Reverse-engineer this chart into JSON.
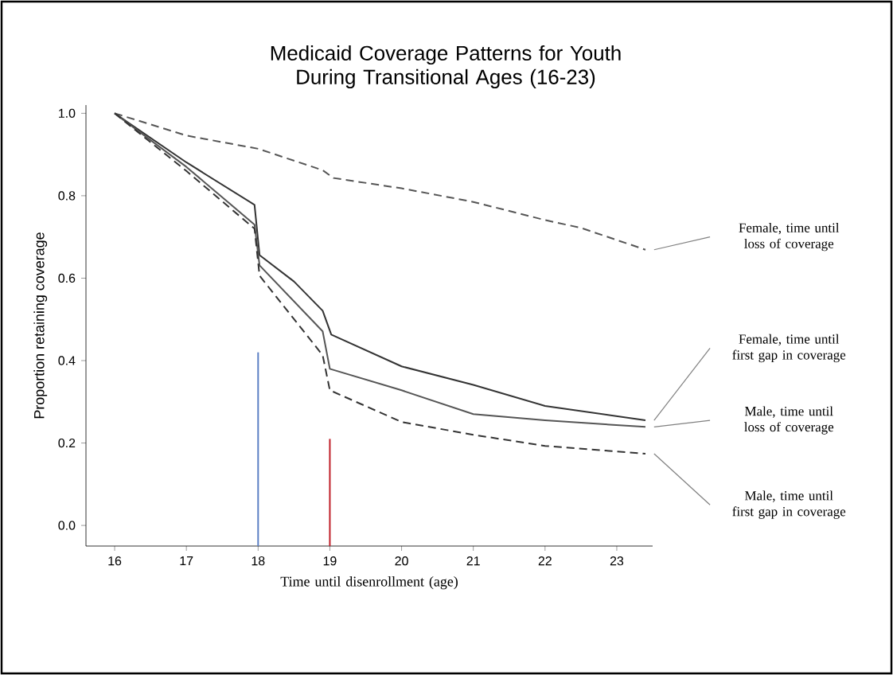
{
  "chart_data": {
    "type": "line",
    "title": "Medicaid Coverage Patterns for Youth During Transitional Ages (16-23)",
    "xlabel": "Time until disenrollment (age)",
    "ylabel": "Proportion retaining coverage",
    "xlim": [
      15.6,
      23.5
    ],
    "ylim": [
      -0.05,
      1.02
    ],
    "xticks": [
      16,
      17,
      18,
      19,
      20,
      21,
      22,
      23
    ],
    "yticks": [
      {
        "value": 0,
        "label": "0.0"
      },
      {
        "value": 0.2,
        "label": "0.2"
      },
      {
        "value": 0.4,
        "label": "0.4"
      },
      {
        "value": 0.6,
        "label": "0.6"
      },
      {
        "value": 0.8,
        "label": "0.8"
      },
      {
        "value": 1.0,
        "label": "1.0"
      }
    ],
    "grid": false,
    "series": [
      {
        "name": "Female, time until loss of coverage",
        "color": "#555555",
        "line_style": "dashed",
        "x": [
          16,
          17,
          18,
          18.9,
          19.05,
          20,
          21,
          22,
          22.5,
          23.4
        ],
        "values": [
          1.0,
          0.946,
          0.914,
          0.862,
          0.843,
          0.818,
          0.785,
          0.741,
          0.722,
          0.669
        ]
      },
      {
        "name": "Female, time until first gap in coverage",
        "color": "#333333",
        "line_style": "solid",
        "x": [
          16,
          17,
          17.95,
          18.02,
          18.5,
          18.9,
          19.02,
          20,
          21,
          22,
          23.4
        ],
        "values": [
          1.0,
          0.881,
          0.778,
          0.656,
          0.592,
          0.521,
          0.463,
          0.386,
          0.341,
          0.29,
          0.255
        ]
      },
      {
        "name": "Male, time until loss of coverage",
        "color": "#555555",
        "line_style": "solid",
        "x": [
          16,
          17,
          17.95,
          18.02,
          18.9,
          19.0,
          20,
          21,
          22,
          23.4
        ],
        "values": [
          1.0,
          0.87,
          0.73,
          0.631,
          0.471,
          0.38,
          0.328,
          0.27,
          0.255,
          0.239
        ]
      },
      {
        "name": "Male, time until first gap in coverage",
        "color": "#333333",
        "line_style": "dashed",
        "x": [
          16,
          17,
          17.95,
          18.02,
          18.9,
          19.0,
          20,
          21,
          22,
          23.4
        ],
        "values": [
          1.0,
          0.86,
          0.72,
          0.606,
          0.413,
          0.328,
          0.251,
          0.22,
          0.193,
          0.174
        ]
      },
      {
        "color": "#5b7fc4",
        "line_style": "solid",
        "x": [
          18,
          18
        ],
        "values": [
          -0.05,
          0.42
        ]
      },
      {
        "color": "#c0202a",
        "line_style": "solid",
        "x": [
          19,
          19
        ],
        "values": [
          -0.05,
          0.21
        ]
      }
    ]
  }
}
